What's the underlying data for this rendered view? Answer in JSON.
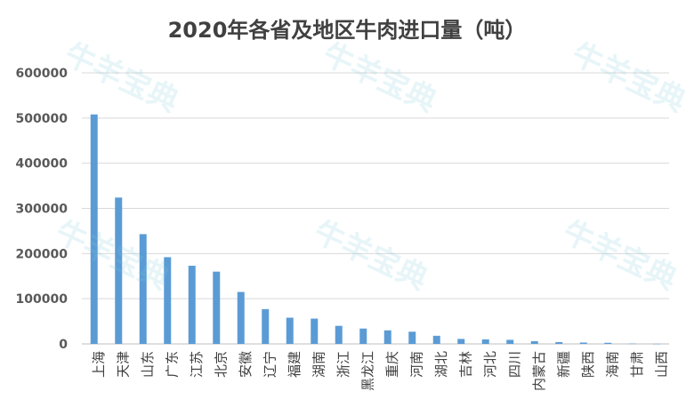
{
  "chart_data": {
    "type": "bar",
    "title": "2020年各省及地区牛肉进口量（吨）",
    "xlabel": "",
    "ylabel": "",
    "ylim": [
      0,
      600000
    ],
    "yticks": [
      "0",
      "100000",
      "200000",
      "300000",
      "400000",
      "500000",
      "600000"
    ],
    "grid": true,
    "legend": "none",
    "bar_color": "#5b9bd5",
    "categories": [
      "上海",
      "天津",
      "山东",
      "广东",
      "江苏",
      "北京",
      "安徽",
      "辽宁",
      "福建",
      "湖南",
      "浙江",
      "黑龙江",
      "重庆",
      "河南",
      "湖北",
      "吉林",
      "河北",
      "四川",
      "内蒙古",
      "新疆",
      "陕西",
      "海南",
      "甘肃",
      "山西"
    ],
    "values": [
      508000,
      324000,
      243000,
      192000,
      173000,
      160000,
      115000,
      77000,
      58000,
      56000,
      40000,
      34000,
      30000,
      27000,
      18000,
      11000,
      10000,
      9000,
      6000,
      4000,
      3000,
      2500,
      700,
      300
    ]
  },
  "watermark": "牛羊宝典"
}
